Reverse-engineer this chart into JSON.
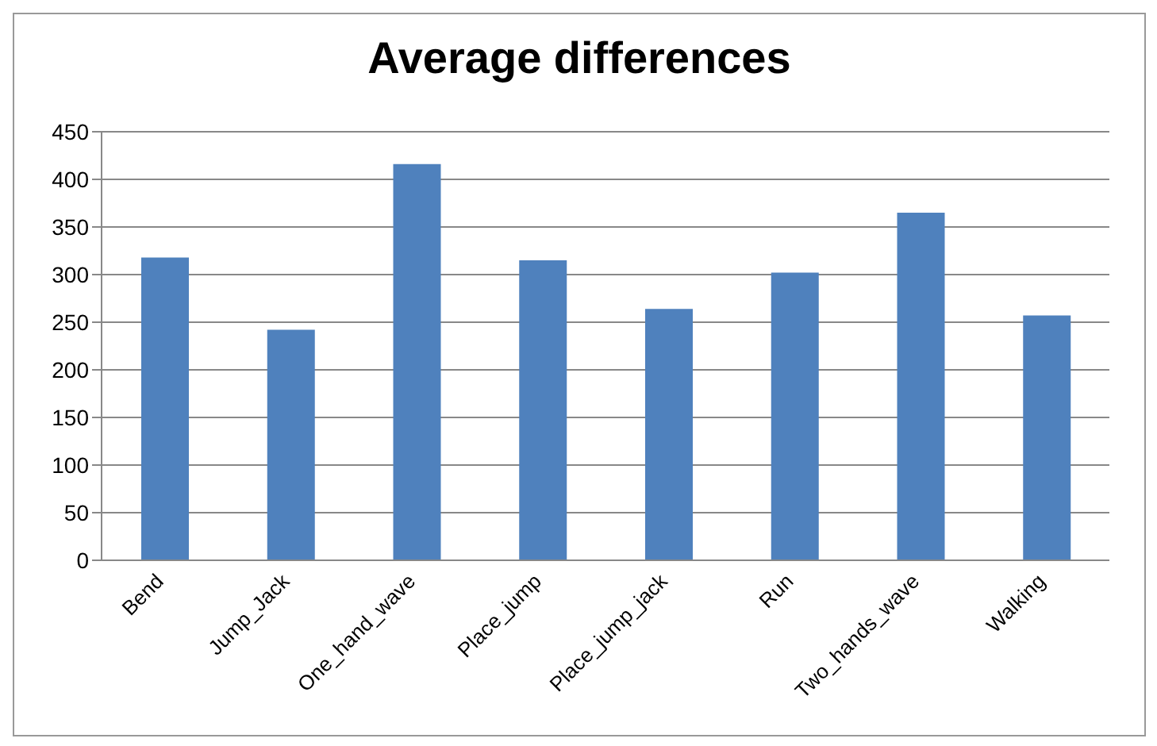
{
  "chart_data": {
    "type": "bar",
    "title": "Average differences",
    "categories": [
      "Bend",
      "Jump_Jack",
      "One_hand_wave",
      "Place_jump",
      "Place_jump_jack",
      "Run",
      "Two_hands_wave",
      "Walking"
    ],
    "values": [
      318,
      242,
      416,
      315,
      264,
      302,
      365,
      257
    ],
    "color": "#4f81bd",
    "ylim": [
      0,
      450
    ],
    "yticks": [
      0,
      50,
      100,
      150,
      200,
      250,
      300,
      350,
      400,
      450
    ],
    "grid": "y"
  }
}
